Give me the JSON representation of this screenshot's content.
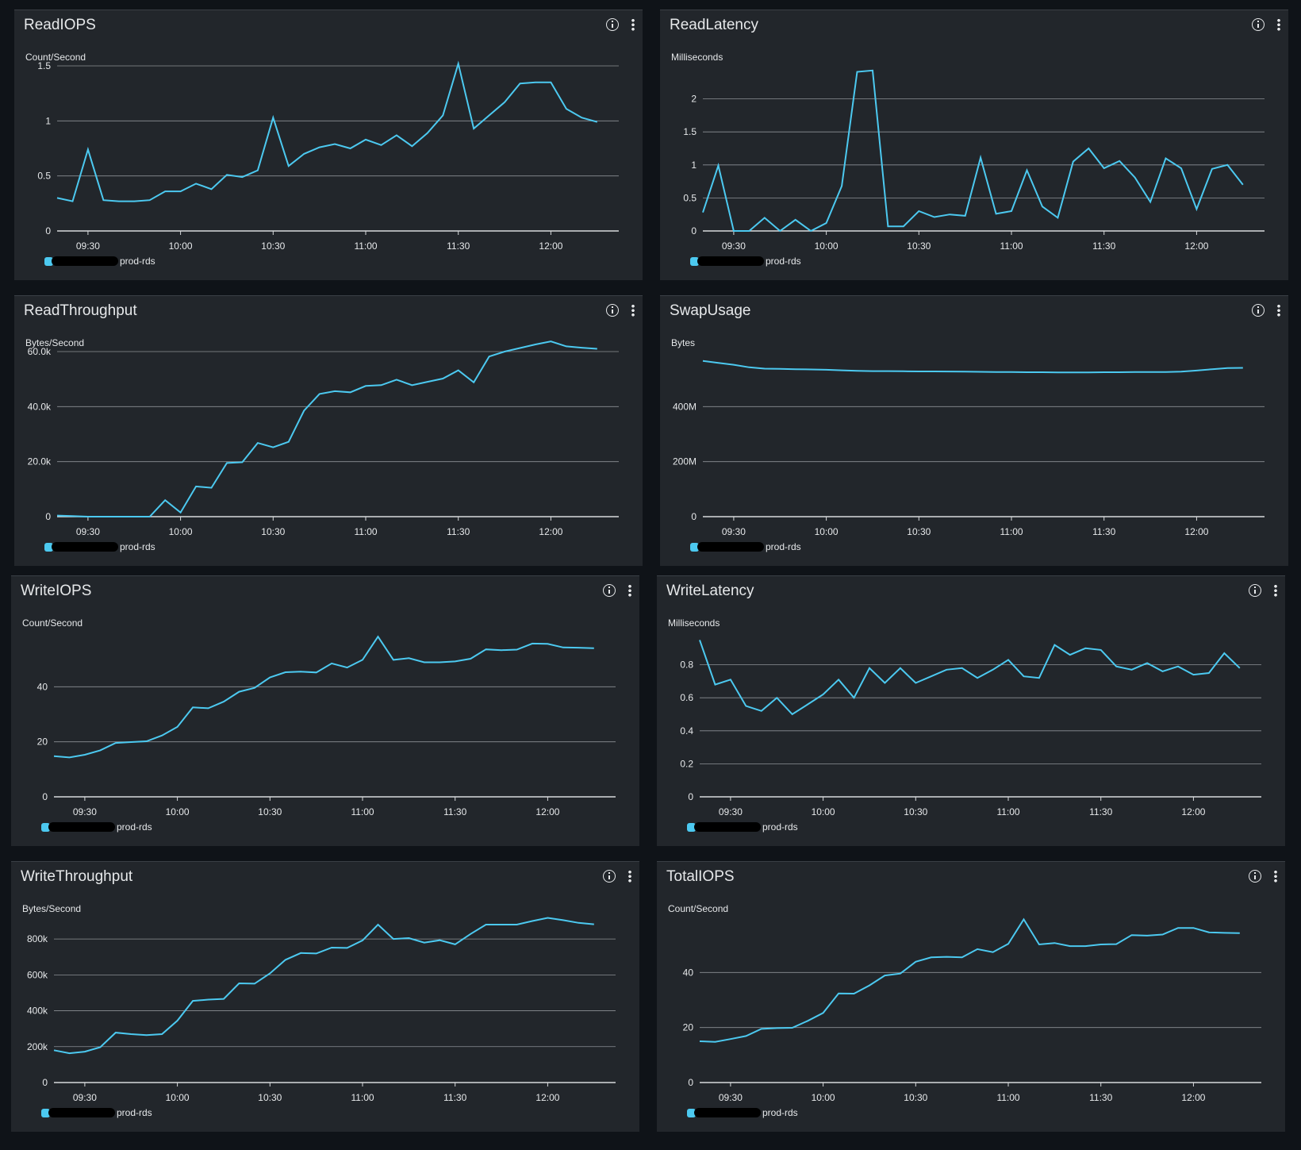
{
  "legend_text": "prod-rds",
  "line_color": "#4cc9f0",
  "chart_data": [
    {
      "type": "line",
      "title": "ReadIOPS",
      "ylabel": "Count/Second",
      "ylim": [
        0,
        1.5
      ],
      "yticks": [
        0,
        0.5,
        1,
        1.5
      ],
      "ytick_labels": [
        "0",
        "0.5",
        "1",
        "1.5"
      ],
      "xticks": [
        "09:30",
        "10:00",
        "10:30",
        "11:00",
        "11:30",
        "12:00"
      ],
      "x": [
        "09:20",
        "09:25",
        "09:30",
        "09:35",
        "09:40",
        "09:45",
        "09:50",
        "09:55",
        "10:00",
        "10:05",
        "10:10",
        "10:15",
        "10:20",
        "10:25",
        "10:30",
        "10:35",
        "10:40",
        "10:45",
        "10:50",
        "10:55",
        "11:00",
        "11:05",
        "11:10",
        "11:15",
        "11:20",
        "11:25",
        "11:30",
        "11:35",
        "11:40",
        "11:45",
        "11:50",
        "11:55",
        "12:00",
        "12:05",
        "12:10",
        "12:15"
      ],
      "series": [
        {
          "values": [
            0.3,
            0.27,
            0.74,
            0.28,
            0.27,
            0.27,
            0.28,
            0.36,
            0.36,
            0.43,
            0.38,
            0.51,
            0.49,
            0.55,
            1.03,
            0.59,
            0.7,
            0.76,
            0.79,
            0.75,
            0.83,
            0.78,
            0.87,
            0.77,
            0.89,
            1.05,
            1.52,
            0.93,
            1.05,
            1.17,
            1.34,
            1.35,
            1.35,
            1.11,
            1.03,
            0.99
          ]
        }
      ]
    },
    {
      "type": "line",
      "title": "ReadLatency",
      "ylabel": "Milliseconds",
      "ylim": [
        0,
        2.5
      ],
      "yticks": [
        0,
        0.5,
        1,
        1.5,
        2
      ],
      "ytick_labels": [
        "0",
        "0.5",
        "1",
        "1.5",
        "2"
      ],
      "xticks": [
        "09:30",
        "10:00",
        "10:30",
        "11:00",
        "11:30",
        "12:00"
      ],
      "x": [
        "09:20",
        "09:25",
        "09:30",
        "09:35",
        "09:40",
        "09:45",
        "09:50",
        "09:55",
        "10:00",
        "10:05",
        "10:10",
        "10:15",
        "10:20",
        "10:25",
        "10:30",
        "10:35",
        "10:40",
        "10:45",
        "10:50",
        "10:55",
        "11:00",
        "11:05",
        "11:10",
        "11:15",
        "11:20",
        "11:25",
        "11:30",
        "11:35",
        "11:40",
        "11:45",
        "11:50",
        "11:55",
        "12:00",
        "12:05",
        "12:10",
        "12:15"
      ],
      "series": [
        {
          "values": [
            0.28,
            0.99,
            0,
            0,
            0.2,
            0,
            0.17,
            0,
            0.12,
            0.68,
            2.41,
            2.43,
            0.07,
            0.07,
            0.3,
            0.21,
            0.25,
            0.23,
            1.11,
            0.26,
            0.3,
            0.92,
            0.37,
            0.2,
            1.05,
            1.25,
            0.95,
            1.06,
            0.81,
            0.44,
            1.1,
            0.95,
            0.33,
            0.94,
            1,
            0.7
          ]
        }
      ]
    },
    {
      "type": "line",
      "title": "ReadThroughput",
      "ylabel": "Bytes/Second",
      "ylim": [
        0,
        60000
      ],
      "yticks": [
        0,
        20000,
        40000,
        60000
      ],
      "ytick_labels": [
        "0",
        "20.0k",
        "40.0k",
        "60.0k"
      ],
      "xticks": [
        "09:30",
        "10:00",
        "10:30",
        "11:00",
        "11:30",
        "12:00"
      ],
      "x": [
        "09:20",
        "09:25",
        "09:30",
        "09:35",
        "09:40",
        "09:45",
        "09:50",
        "09:55",
        "10:00",
        "10:05",
        "10:10",
        "10:15",
        "10:20",
        "10:25",
        "10:30",
        "10:35",
        "10:40",
        "10:45",
        "10:50",
        "10:55",
        "11:00",
        "11:05",
        "11:10",
        "11:15",
        "11:20",
        "11:25",
        "11:30",
        "11:35",
        "11:40",
        "11:45",
        "11:50",
        "11:55",
        "12:00",
        "12:05",
        "12:10",
        "12:15"
      ],
      "series": [
        {
          "values": [
            400,
            200,
            0,
            0,
            0,
            0,
            0,
            6000,
            1500,
            11000,
            10500,
            19500,
            19800,
            26800,
            25200,
            27200,
            38500,
            44600,
            45600,
            45200,
            47500,
            47800,
            49800,
            47800,
            49000,
            50200,
            53200,
            48800,
            58200,
            60000,
            61300,
            62600,
            63700,
            61900,
            61400,
            61000
          ]
        }
      ]
    },
    {
      "type": "line",
      "title": "SwapUsage",
      "ylabel": "Bytes",
      "ylim": [
        0,
        600000000
      ],
      "yticks": [
        0,
        200000000,
        400000000
      ],
      "ytick_labels": [
        "0",
        "200M",
        "400M"
      ],
      "xticks": [
        "09:30",
        "10:00",
        "10:30",
        "11:00",
        "11:30",
        "12:00"
      ],
      "x": [
        "09:20",
        "09:25",
        "09:30",
        "09:35",
        "09:40",
        "09:45",
        "09:50",
        "09:55",
        "10:00",
        "10:05",
        "10:10",
        "10:15",
        "10:20",
        "10:25",
        "10:30",
        "10:35",
        "10:40",
        "10:45",
        "10:50",
        "10:55",
        "11:00",
        "11:05",
        "11:10",
        "11:15",
        "11:20",
        "11:25",
        "11:30",
        "11:35",
        "11:40",
        "11:45",
        "11:50",
        "11:55",
        "12:00",
        "12:05",
        "12:10",
        "12:15"
      ],
      "series": [
        {
          "values": [
            566000000,
            559000000,
            552000000,
            543000000,
            538000000,
            537000000,
            536000000,
            535000000,
            534000000,
            532000000,
            530000000,
            529000000,
            529000000,
            528500000,
            528000000,
            528000000,
            527500000,
            527000000,
            526500000,
            526000000,
            525500000,
            525000000,
            525000000,
            524500000,
            524500000,
            524500000,
            525000000,
            525000000,
            525500000,
            526000000,
            526000000,
            527000000,
            531000000,
            536000000,
            540000000,
            541000000
          ]
        }
      ]
    },
    {
      "type": "line",
      "title": "WriteIOPS",
      "ylabel": "Count/Second",
      "ylim": [
        0,
        60
      ],
      "yticks": [
        0,
        20,
        40
      ],
      "ytick_labels": [
        "0",
        "20",
        "40"
      ],
      "xticks": [
        "09:30",
        "10:00",
        "10:30",
        "11:00",
        "11:30",
        "12:00"
      ],
      "x": [
        "09:20",
        "09:25",
        "09:30",
        "09:35",
        "09:40",
        "09:45",
        "09:50",
        "09:55",
        "10:00",
        "10:05",
        "10:10",
        "10:15",
        "10:20",
        "10:25",
        "10:30",
        "10:35",
        "10:40",
        "10:45",
        "10:50",
        "10:55",
        "11:00",
        "11:05",
        "11:10",
        "11:15",
        "11:20",
        "11:25",
        "11:30",
        "11:35",
        "11:40",
        "11:45",
        "11:50",
        "11:55",
        "12:00",
        "12:05",
        "12:10",
        "12:15"
      ],
      "series": [
        {
          "values": [
            14.8,
            14.3,
            15.3,
            16.9,
            19.6,
            19.9,
            20.2,
            22.3,
            25.4,
            32.5,
            32.2,
            34.6,
            38.2,
            39.6,
            43.4,
            45.3,
            45.5,
            45.2,
            48.5,
            47,
            49.8,
            58.2,
            49.8,
            50.4,
            48.9,
            48.9,
            49.2,
            50.2,
            53.6,
            53.3,
            53.5,
            55.7,
            55.6,
            54.3,
            54.2,
            54
          ]
        }
      ]
    },
    {
      "type": "line",
      "title": "WriteLatency",
      "ylabel": "Milliseconds",
      "ylim": [
        0,
        1
      ],
      "yticks": [
        0,
        0.2,
        0.4,
        0.6,
        0.8
      ],
      "ytick_labels": [
        "0",
        "0.2",
        "0.4",
        "0.6",
        "0.8"
      ],
      "xticks": [
        "09:30",
        "10:00",
        "10:30",
        "11:00",
        "11:30",
        "12:00"
      ],
      "x": [
        "09:20",
        "09:25",
        "09:30",
        "09:35",
        "09:40",
        "09:45",
        "09:50",
        "09:55",
        "10:00",
        "10:05",
        "10:10",
        "10:15",
        "10:20",
        "10:25",
        "10:30",
        "10:35",
        "10:40",
        "10:45",
        "10:50",
        "10:55",
        "11:00",
        "11:05",
        "11:10",
        "11:15",
        "11:20",
        "11:25",
        "11:30",
        "11:35",
        "11:40",
        "11:45",
        "11:50",
        "11:55",
        "12:00",
        "12:05",
        "12:10",
        "12:15"
      ],
      "series": [
        {
          "values": [
            0.95,
            0.68,
            0.71,
            0.55,
            0.52,
            0.6,
            0.5,
            0.56,
            0.62,
            0.71,
            0.6,
            0.78,
            0.69,
            0.78,
            0.69,
            0.73,
            0.77,
            0.78,
            0.72,
            0.77,
            0.83,
            0.73,
            0.72,
            0.92,
            0.86,
            0.9,
            0.89,
            0.79,
            0.77,
            0.81,
            0.76,
            0.79,
            0.74,
            0.75,
            0.87,
            0.78
          ]
        }
      ]
    },
    {
      "type": "line",
      "title": "WriteThroughput",
      "ylabel": "Bytes/Second",
      "ylim": [
        0,
        920000
      ],
      "yticks": [
        0,
        200000,
        400000,
        600000,
        800000
      ],
      "ytick_labels": [
        "0",
        "200k",
        "400k",
        "600k",
        "800k"
      ],
      "xticks": [
        "09:30",
        "10:00",
        "10:30",
        "11:00",
        "11:30",
        "12:00"
      ],
      "x": [
        "09:20",
        "09:25",
        "09:30",
        "09:35",
        "09:40",
        "09:45",
        "09:50",
        "09:55",
        "10:00",
        "10:05",
        "10:10",
        "10:15",
        "10:20",
        "10:25",
        "10:30",
        "10:35",
        "10:40",
        "10:45",
        "10:50",
        "10:55",
        "11:00",
        "11:05",
        "11:10",
        "11:15",
        "11:20",
        "11:25",
        "11:30",
        "11:35",
        "11:40",
        "11:45",
        "11:50",
        "11:55",
        "12:00",
        "12:05",
        "12:10",
        "12:15"
      ],
      "series": [
        {
          "values": [
            180000,
            163000,
            172000,
            197000,
            278000,
            270000,
            264000,
            270000,
            345000,
            455000,
            462000,
            466000,
            553000,
            551000,
            608000,
            684000,
            722000,
            719000,
            752000,
            750000,
            792000,
            880000,
            800000,
            805000,
            780000,
            793000,
            770000,
            828000,
            880000,
            880000,
            880000,
            900000,
            918000,
            905000,
            890000,
            882000
          ]
        }
      ]
    },
    {
      "type": "line",
      "title": "TotalIOPS",
      "ylabel": "Count/Second",
      "ylim": [
        0,
        60
      ],
      "yticks": [
        0,
        20,
        40
      ],
      "ytick_labels": [
        "0",
        "20",
        "40"
      ],
      "xticks": [
        "09:30",
        "10:00",
        "10:30",
        "11:00",
        "11:30",
        "12:00"
      ],
      "x": [
        "09:20",
        "09:25",
        "09:30",
        "09:35",
        "09:40",
        "09:45",
        "09:50",
        "09:55",
        "10:00",
        "10:05",
        "10:10",
        "10:15",
        "10:20",
        "10:25",
        "10:30",
        "10:35",
        "10:40",
        "10:45",
        "10:50",
        "10:55",
        "11:00",
        "11:05",
        "11:10",
        "11:15",
        "11:20",
        "11:25",
        "11:30",
        "11:35",
        "11:40",
        "11:45",
        "11:50",
        "11:55",
        "12:00",
        "12:05",
        "12:10",
        "12:15"
      ],
      "series": [
        {
          "values": [
            15,
            14.8,
            15.8,
            16.9,
            19.5,
            19.8,
            19.9,
            22.4,
            25.3,
            32.4,
            32.3,
            35.3,
            38.9,
            39.6,
            43.9,
            45.5,
            45.7,
            45.5,
            48.5,
            47.4,
            50.4,
            59.3,
            50.2,
            50.7,
            49.6,
            49.6,
            50.2,
            50.3,
            53.6,
            53.4,
            53.8,
            56.2,
            56.2,
            54.6,
            54.4,
            54.3
          ]
        }
      ]
    }
  ]
}
